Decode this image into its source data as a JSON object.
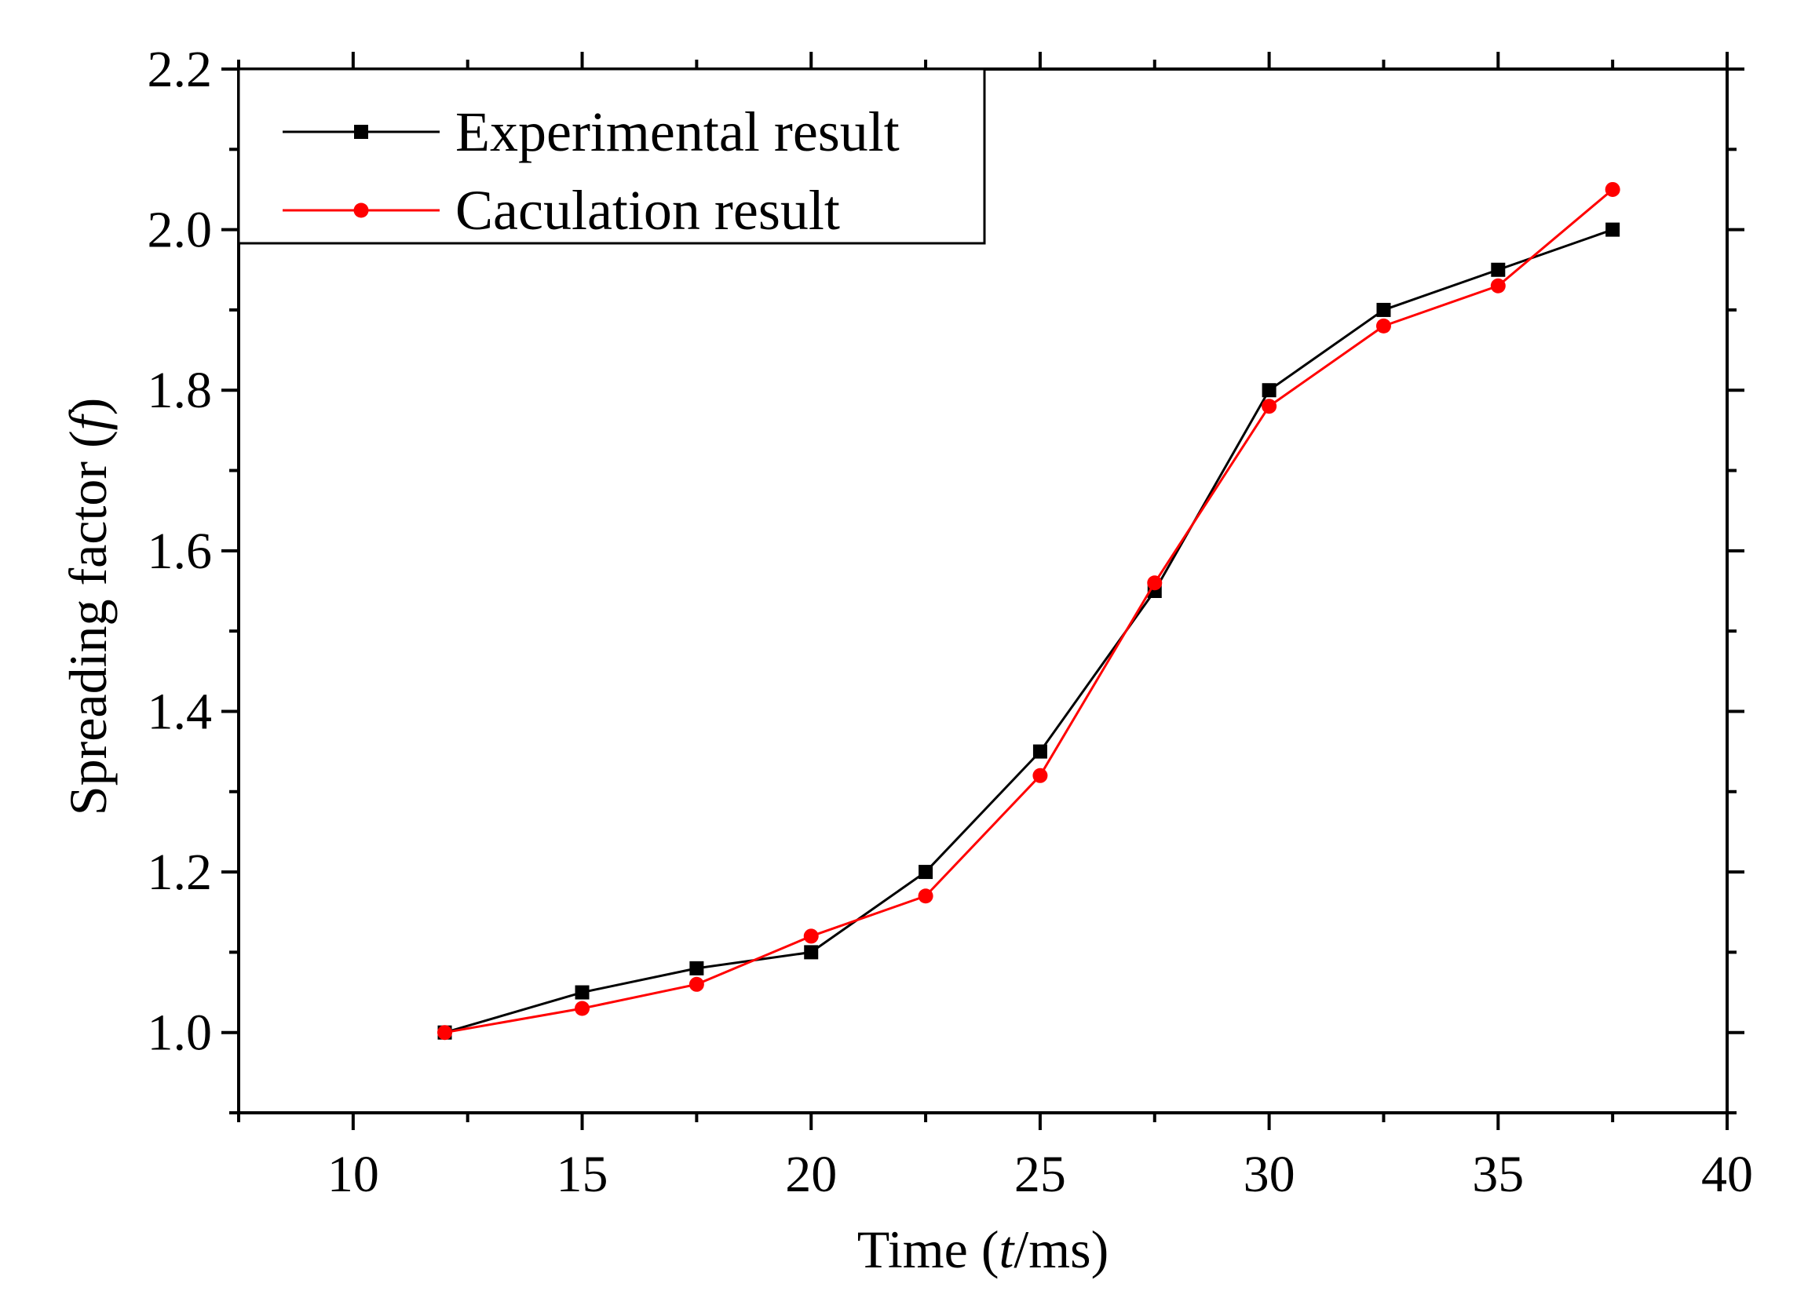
{
  "chart_data": {
    "type": "line",
    "title": "",
    "xlabel_parts": [
      "Time (",
      "t",
      "/ms)"
    ],
    "ylabel_parts": [
      "Spreading factor (",
      "f",
      ")"
    ],
    "xlim": [
      7.5,
      40
    ],
    "ylim": [
      0.9,
      2.2
    ],
    "x_ticks": [
      10,
      15,
      20,
      25,
      30,
      35,
      40
    ],
    "x_tick_labels": [
      "10",
      "15",
      "20",
      "25",
      "30",
      "35",
      "40"
    ],
    "y_ticks": [
      1.0,
      1.2,
      1.4,
      1.6,
      1.8,
      2.0,
      2.2
    ],
    "y_tick_labels": [
      "1.0",
      "1.2",
      "1.4",
      "1.6",
      "1.8",
      "2.0",
      "2.2"
    ],
    "grid": false,
    "legend_position": "top-left",
    "series": [
      {
        "name": "Experimental result",
        "color": "#000000",
        "marker": "square",
        "x": [
          12,
          15,
          17.5,
          20,
          22.5,
          25,
          27.5,
          30,
          32.5,
          35,
          37.5
        ],
        "y": [
          1.0,
          1.05,
          1.08,
          1.1,
          1.2,
          1.35,
          1.55,
          1.8,
          1.9,
          1.95,
          2.0
        ]
      },
      {
        "name": "Caculation result",
        "color": "#ff0000",
        "marker": "circle",
        "x": [
          12,
          15,
          17.5,
          20,
          22.5,
          25,
          27.5,
          30,
          32.5,
          35,
          37.5
        ],
        "y": [
          1.0,
          1.03,
          1.06,
          1.12,
          1.17,
          1.32,
          1.56,
          1.78,
          1.88,
          1.93,
          2.05
        ]
      }
    ]
  }
}
